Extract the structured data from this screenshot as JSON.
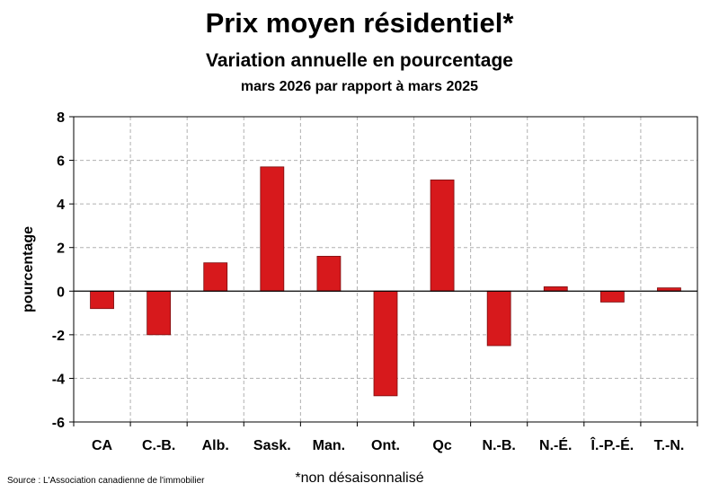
{
  "header": {
    "title": "Prix moyen résidentiel*",
    "subtitle": "Variation annuelle en pourcentage",
    "subtitle2": "mars 2026 par rapport à mars 2025"
  },
  "footer": {
    "source": "Source : L'Association canadienne de l'immobilier",
    "note": "*non désaisonnalisé"
  },
  "colors": {
    "bar": "#D7191C",
    "bar_stroke": "#7a0d0f",
    "grid": "#b0b0b0"
  },
  "chart_data": {
    "type": "bar",
    "title": "Prix moyen résidentiel*",
    "ylabel": "pourcentage",
    "xlabel": "",
    "categories": [
      "CA",
      "C.-B.",
      "Alb.",
      "Sask.",
      "Man.",
      "Ont.",
      "Qc",
      "N.-B.",
      "N.-É.",
      "Î.-P.-É.",
      "T.-N."
    ],
    "values": [
      -0.8,
      -2.0,
      1.3,
      5.7,
      1.6,
      -4.8,
      5.1,
      -2.5,
      0.2,
      -0.5,
      0.15
    ],
    "ylim": [
      -6,
      8
    ],
    "yticks": [
      -6,
      -4,
      -2,
      0,
      2,
      4,
      6,
      8
    ],
    "grid": true,
    "legend": "none"
  }
}
